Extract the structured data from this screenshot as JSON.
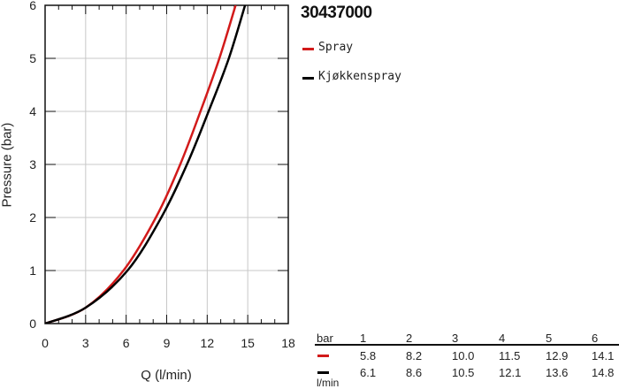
{
  "chart_data": {
    "type": "line",
    "title": "30437000",
    "xlabel": "Q (l/min)",
    "ylabel": "Pressure (bar)",
    "xlim": [
      0,
      18
    ],
    "ylim": [
      0,
      6
    ],
    "xticks": [
      "0",
      "3",
      "6",
      "9",
      "12",
      "15",
      "18"
    ],
    "yticks": [
      "0",
      "1",
      "2",
      "3",
      "4",
      "5",
      "6"
    ],
    "grid": true,
    "legend_placement": "right",
    "series": [
      {
        "name": "Spray",
        "color": "#d21a1a",
        "x": [
          0,
          3,
          5.8,
          8.2,
          10.0,
          11.5,
          12.9,
          14.1
        ],
        "y": [
          0,
          0.3,
          1,
          2,
          3,
          4,
          5,
          6
        ]
      },
      {
        "name": "Kjøkkenspray",
        "color": "#000000",
        "x": [
          0,
          3,
          6.1,
          8.6,
          10.5,
          12.1,
          13.6,
          14.8
        ],
        "y": [
          0,
          0.3,
          1,
          2,
          3,
          4,
          5,
          6
        ]
      }
    ],
    "table": {
      "header_label": "bar",
      "unit_label": "l/min",
      "pressures": [
        "1",
        "2",
        "3",
        "4",
        "5",
        "6"
      ],
      "rows": [
        {
          "color": "#d21a1a",
          "values": [
            "5.8",
            "8.2",
            "10.0",
            "11.5",
            "12.9",
            "14.1"
          ]
        },
        {
          "color": "#000000",
          "values": [
            "6.1",
            "8.6",
            "10.5",
            "12.1",
            "13.6",
            "14.8"
          ]
        }
      ]
    }
  }
}
